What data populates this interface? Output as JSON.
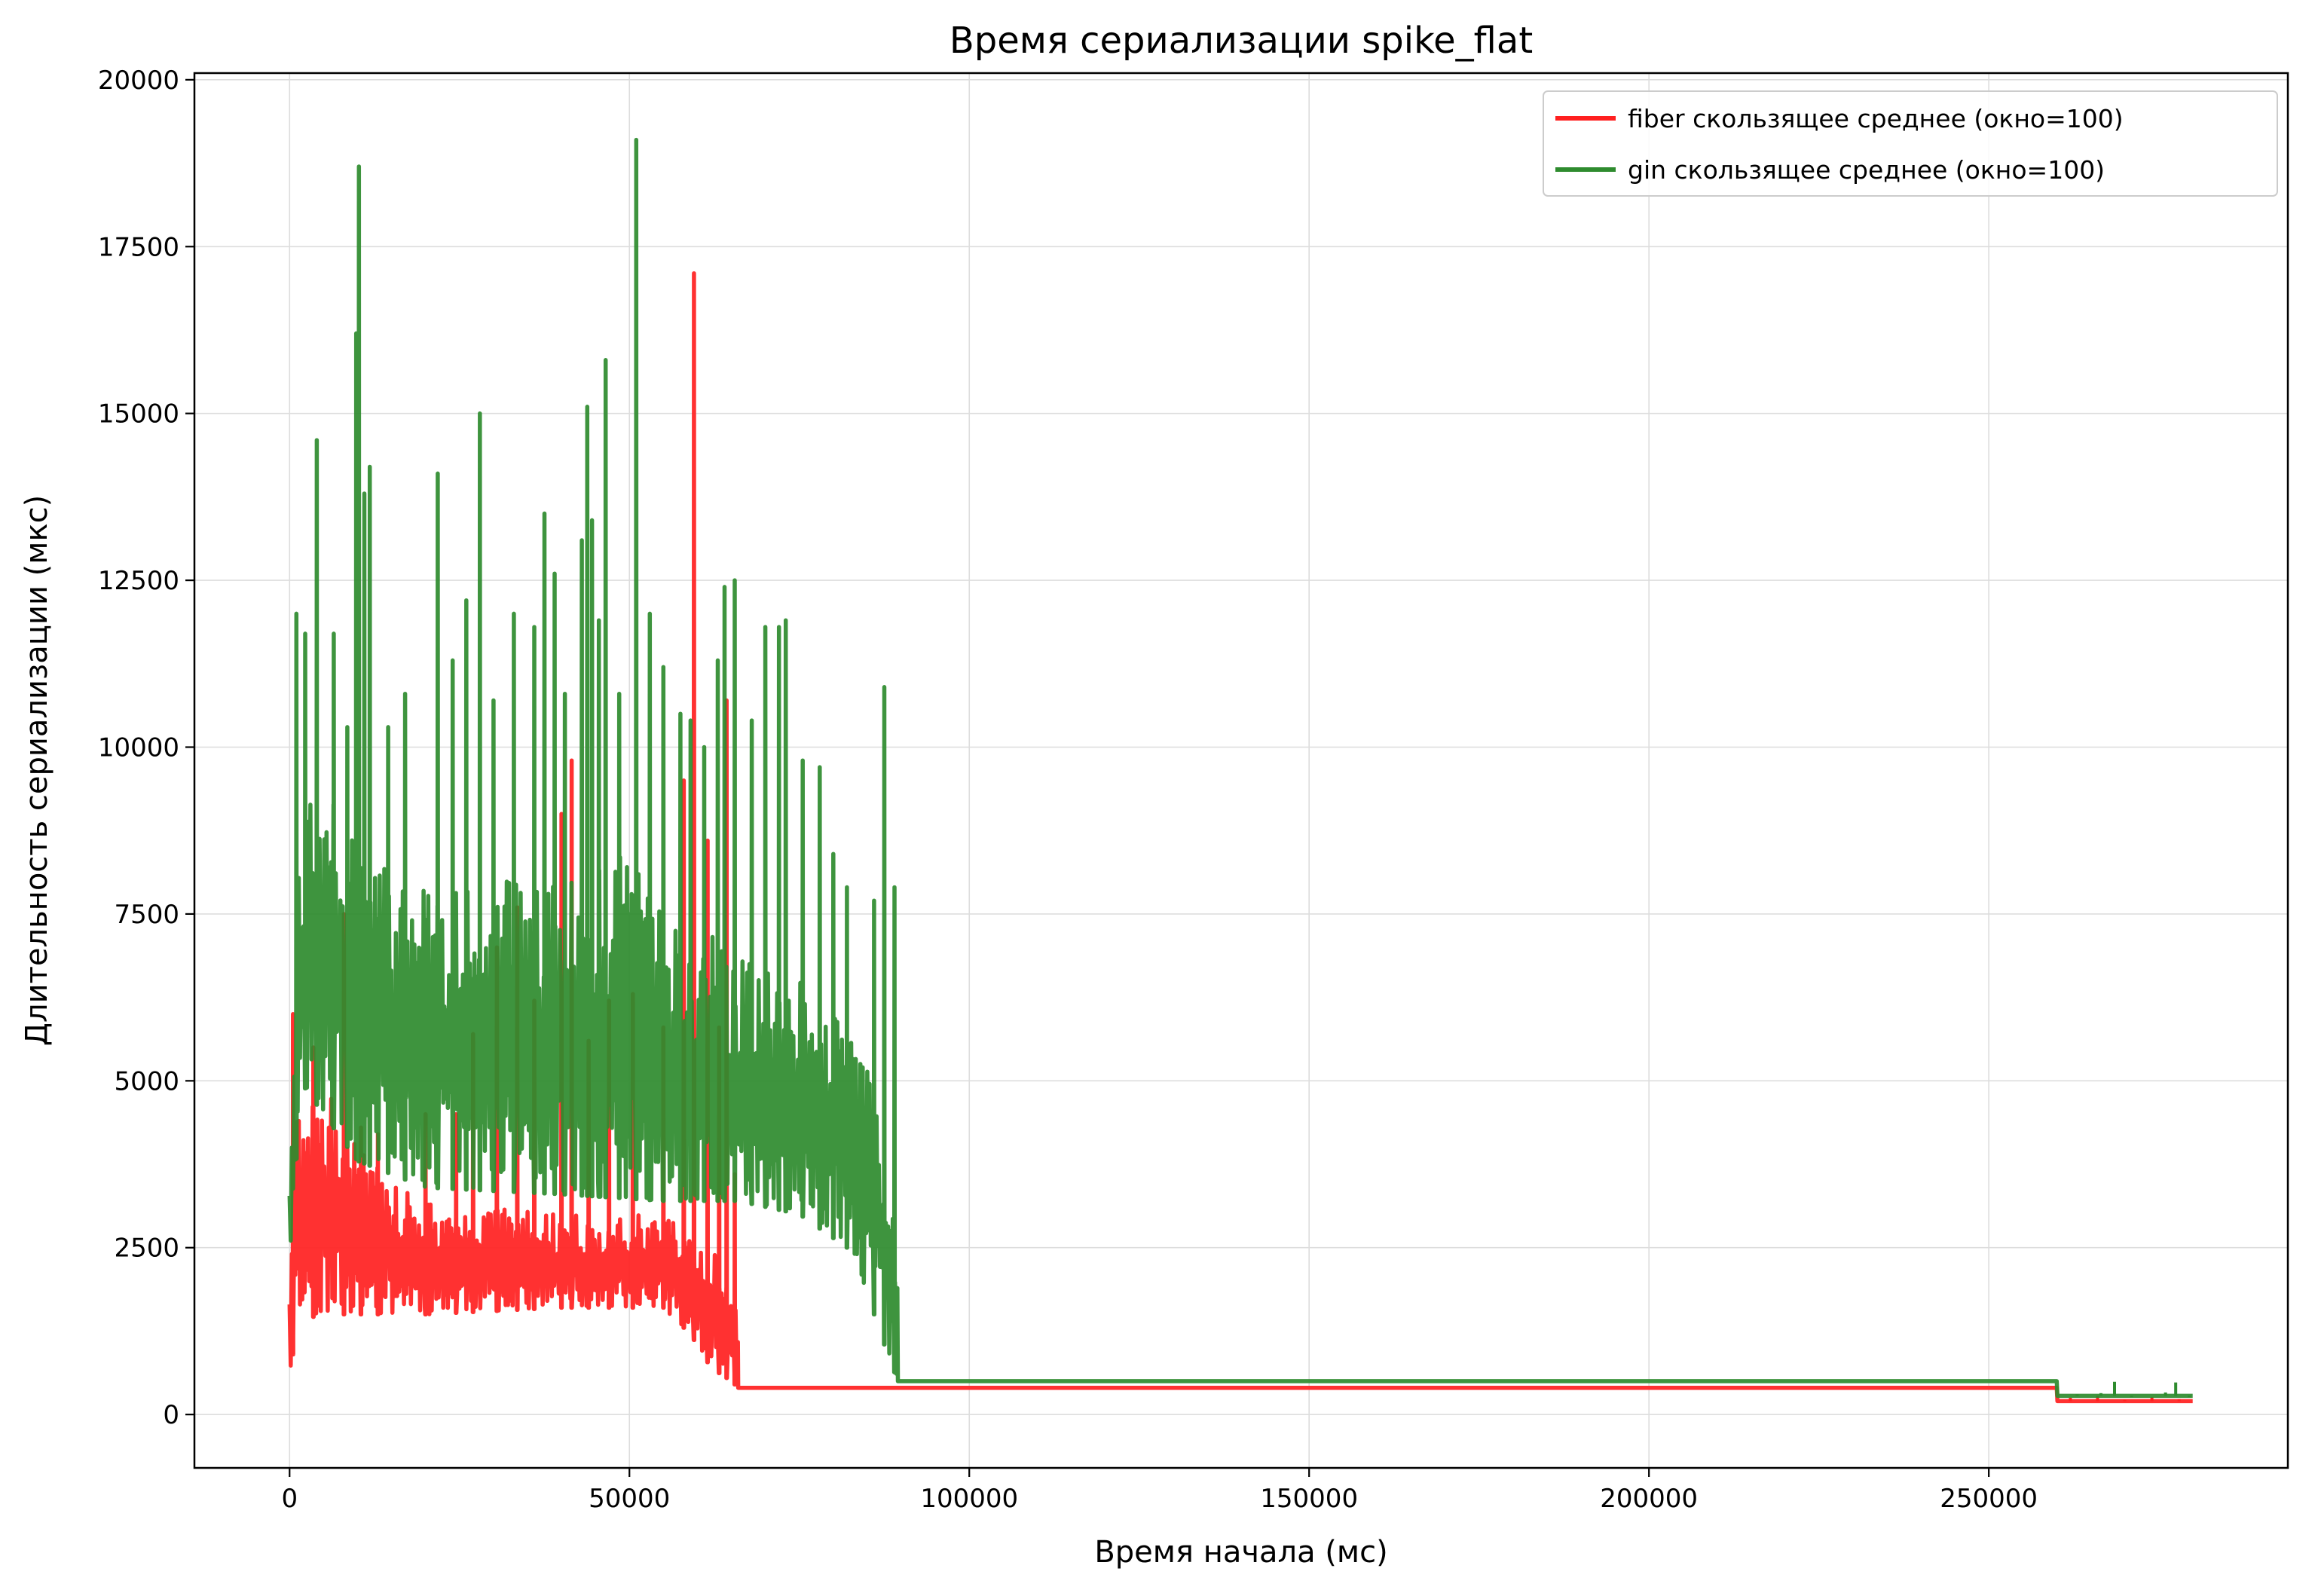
{
  "chart_data": {
    "type": "line",
    "title": "Время сериализации spike_flat",
    "xlabel": "Время начала (мс)",
    "ylabel": "Длительность сериализации (мкс)",
    "xlim": [
      -14000,
      294000
    ],
    "ylim": [
      -800,
      20100
    ],
    "xticks": [
      0,
      50000,
      100000,
      150000,
      200000,
      250000
    ],
    "yticks": [
      0,
      2500,
      5000,
      7500,
      10000,
      12500,
      15000,
      17500,
      20000
    ],
    "grid": true,
    "legend_position": "top-right",
    "series": [
      {
        "name": "fiber скользящее среднее (окно=100)",
        "color": "#ff2020",
        "band": {
          "x_start": 0,
          "x_end": 66000,
          "low_profile": [
            [
              0,
              400
            ],
            [
              1000,
              1400
            ],
            [
              5000,
              1500
            ],
            [
              20000,
              1500
            ],
            [
              40000,
              1600
            ],
            [
              55000,
              1600
            ],
            [
              59000,
              1200
            ],
            [
              62000,
              700
            ],
            [
              65000,
              500
            ],
            [
              66000,
              400
            ]
          ],
          "high_profile": [
            [
              0,
              1800
            ],
            [
              1000,
              4500
            ],
            [
              5000,
              5000
            ],
            [
              10000,
              4000
            ],
            [
              20000,
              3200
            ],
            [
              40000,
              3000
            ],
            [
              55000,
              3000
            ],
            [
              59000,
              2800
            ],
            [
              62000,
              2500
            ],
            [
              65000,
              2000
            ],
            [
              66000,
              1300
            ]
          ],
          "seed": 11
        },
        "spikes": [
          [
            500,
            6000
          ],
          [
            3500,
            5500
          ],
          [
            8000,
            7500
          ],
          [
            10500,
            4300
          ],
          [
            13000,
            4200
          ],
          [
            20000,
            4500
          ],
          [
            24500,
            4500
          ],
          [
            27000,
            5700
          ],
          [
            30500,
            7000
          ],
          [
            33500,
            7600
          ],
          [
            36000,
            6200
          ],
          [
            40000,
            9000
          ],
          [
            41500,
            9800
          ],
          [
            44000,
            5600
          ],
          [
            47000,
            6200
          ],
          [
            50500,
            6300
          ],
          [
            55000,
            5800
          ],
          [
            58000,
            9500
          ],
          [
            59500,
            17100
          ],
          [
            61500,
            8600
          ],
          [
            63200,
            5800
          ],
          [
            64300,
            10700
          ],
          [
            65500,
            3600
          ]
        ],
        "tail": [
          [
            66000,
            400
          ],
          [
            260000,
            400
          ],
          [
            260100,
            200
          ],
          [
            280000,
            200
          ]
        ],
        "tail_noise": [
          [
            262000,
            250
          ],
          [
            266000,
            280
          ],
          [
            270000,
            220
          ],
          [
            274000,
            260
          ],
          [
            278000,
            230
          ]
        ]
      },
      {
        "name": "gin скользящее среднее (окно=100)",
        "color": "#2e8b2e",
        "band": {
          "x_start": 0,
          "x_end": 89500,
          "low_profile": [
            [
              0,
              1500
            ],
            [
              1500,
              5000
            ],
            [
              5000,
              4500
            ],
            [
              10000,
              3800
            ],
            [
              20000,
              3400
            ],
            [
              40000,
              3300
            ],
            [
              55000,
              3200
            ],
            [
              66000,
              3200
            ],
            [
              75000,
              3000
            ],
            [
              82000,
              2500
            ],
            [
              86000,
              1500
            ],
            [
              88000,
              900
            ],
            [
              89500,
              500
            ]
          ],
          "high_profile": [
            [
              0,
              3500
            ],
            [
              1500,
              9000
            ],
            [
              5000,
              9500
            ],
            [
              10000,
              8500
            ],
            [
              20000,
              8000
            ],
            [
              40000,
              8000
            ],
            [
              50000,
              8500
            ],
            [
              55000,
              7500
            ],
            [
              66000,
              7000
            ],
            [
              75000,
              6500
            ],
            [
              82000,
              6000
            ],
            [
              86000,
              5000
            ],
            [
              88000,
              4000
            ],
            [
              89500,
              2500
            ]
          ],
          "seed": 29
        },
        "spikes": [
          [
            1000,
            12000
          ],
          [
            2300,
            11700
          ],
          [
            4000,
            14600
          ],
          [
            6500,
            11700
          ],
          [
            8500,
            10300
          ],
          [
            9800,
            16200
          ],
          [
            10200,
            18700
          ],
          [
            11000,
            13800
          ],
          [
            11800,
            14200
          ],
          [
            14500,
            10300
          ],
          [
            17000,
            10800
          ],
          [
            21800,
            14100
          ],
          [
            24000,
            11300
          ],
          [
            26000,
            12200
          ],
          [
            28000,
            15000
          ],
          [
            30000,
            10700
          ],
          [
            33000,
            12000
          ],
          [
            36000,
            11800
          ],
          [
            37500,
            13500
          ],
          [
            39000,
            12600
          ],
          [
            40500,
            10800
          ],
          [
            43000,
            13100
          ],
          [
            43800,
            15100
          ],
          [
            44500,
            13400
          ],
          [
            45500,
            11900
          ],
          [
            46500,
            15800
          ],
          [
            48500,
            10800
          ],
          [
            51000,
            19100
          ],
          [
            53000,
            12000
          ],
          [
            55000,
            11200
          ],
          [
            57500,
            10500
          ],
          [
            59000,
            10400
          ],
          [
            61000,
            10000
          ],
          [
            63000,
            11300
          ],
          [
            64000,
            12400
          ],
          [
            65500,
            12500
          ],
          [
            68000,
            10400
          ],
          [
            70000,
            11800
          ],
          [
            72000,
            11800
          ],
          [
            73000,
            11900
          ],
          [
            75500,
            9800
          ],
          [
            78000,
            9700
          ],
          [
            80000,
            8400
          ],
          [
            82000,
            7900
          ],
          [
            86000,
            7700
          ],
          [
            87500,
            10900
          ],
          [
            89000,
            7900
          ]
        ],
        "tail": [
          [
            89500,
            500
          ],
          [
            260000,
            500
          ],
          [
            260100,
            280
          ],
          [
            280000,
            280
          ]
        ],
        "tail_noise": [
          [
            263000,
            300
          ],
          [
            266500,
            320
          ],
          [
            268500,
            490
          ],
          [
            271000,
            260
          ],
          [
            276000,
            330
          ],
          [
            277500,
            480
          ],
          [
            279500,
            260
          ]
        ]
      }
    ]
  }
}
